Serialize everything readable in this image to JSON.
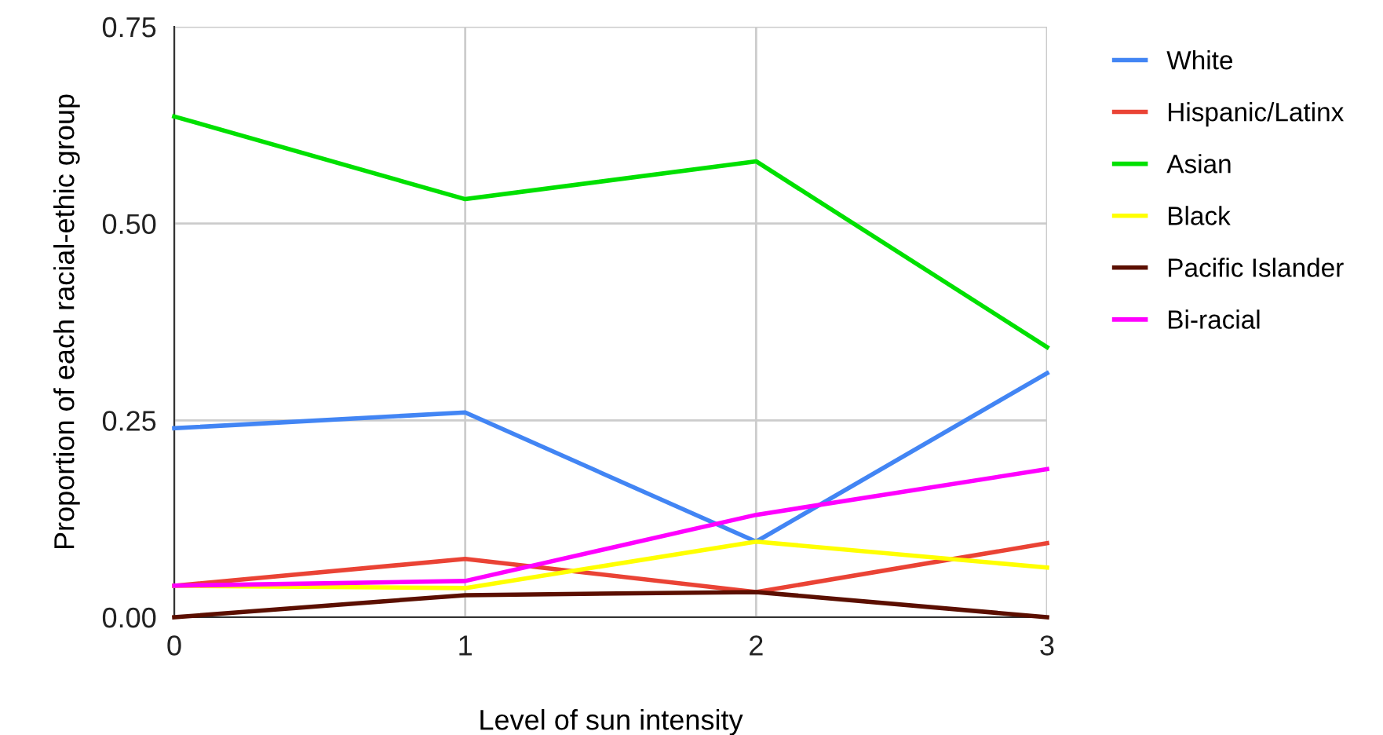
{
  "chart_data": {
    "type": "line",
    "xlabel": "Level of sun intensity",
    "ylabel": "Proportion of each racial-ethic group",
    "x": [
      0,
      1,
      2,
      3
    ],
    "xlim": [
      0,
      3
    ],
    "xticks": [
      0,
      1,
      2,
      3
    ],
    "ylim": [
      0,
      0.75
    ],
    "yticks": [
      {
        "value": 0,
        "label": "0.00"
      },
      {
        "value": 0.25,
        "label": "0.25"
      },
      {
        "value": 0.5,
        "label": "0.50"
      },
      {
        "value": 0.75,
        "label": "0.75"
      }
    ],
    "grid": true,
    "legend": "right",
    "marker": "none",
    "line_style": "solid",
    "series": [
      {
        "name": "White",
        "color": "#4285f4",
        "values": [
          0.24,
          0.26,
          0.096,
          0.31
        ]
      },
      {
        "name": "Hispanic/Latinx",
        "color": "#ea4335",
        "values": [
          0.04,
          0.074,
          0.032,
          0.094
        ]
      },
      {
        "name": "Asian",
        "color": "#00e000",
        "values": [
          0.636,
          0.531,
          0.579,
          0.343
        ]
      },
      {
        "name": "Black",
        "color": "#ffff00",
        "values": [
          0.04,
          0.037,
          0.096,
          0.063
        ]
      },
      {
        "name": "Pacific Islander",
        "color": "#5b0f00",
        "values": [
          0,
          0.028,
          0.032,
          0
        ]
      },
      {
        "name": "Bi-racial",
        "color": "#ff00ff",
        "values": [
          0.04,
          0.046,
          0.13,
          0.188
        ]
      }
    ]
  }
}
